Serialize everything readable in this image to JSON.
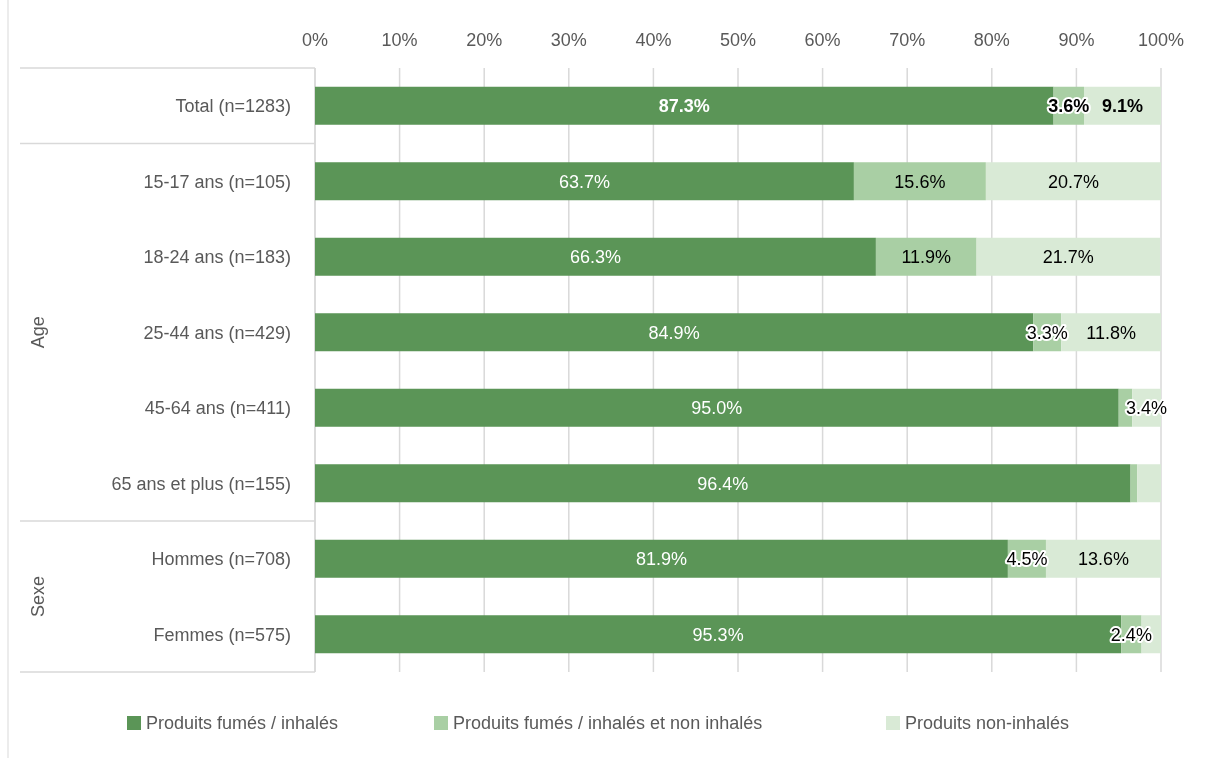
{
  "chart_data": {
    "type": "bar",
    "orientation": "horizontal",
    "stacked": true,
    "categories": [
      "Total (n=1283)",
      "15-17 ans (n=105)",
      "18-24 ans (n=183)",
      "25-44 ans (n=429)",
      "45-64 ans (n=411)",
      "65 ans et plus (n=155)",
      "Hommes (n=708)",
      "Femmes (n=575)"
    ],
    "series": [
      {
        "name": "Produits fumés / inhalés",
        "color": "#5b9557",
        "values": [
          87.3,
          63.7,
          66.3,
          84.9,
          95.0,
          96.4,
          81.9,
          95.3
        ],
        "value_labels": [
          "87.3%",
          "63.7%",
          "66.3%",
          "84.9%",
          "95.0%",
          "96.4%",
          "81.9%",
          "95.3%"
        ]
      },
      {
        "name": "Produits fumés / inhalés et non inhalés",
        "color": "#a9cfa4",
        "values": [
          3.6,
          15.6,
          11.9,
          3.3,
          1.6,
          0.8,
          4.5,
          2.4
        ],
        "value_labels": [
          "3.6%",
          "15.6%",
          "11.9%",
          "3.3%",
          null,
          null,
          "4.5%",
          "2.4%"
        ]
      },
      {
        "name": "Produits non-inhalés",
        "color": "#d9ead6",
        "values": [
          9.1,
          20.7,
          21.7,
          11.8,
          3.4,
          2.8,
          13.6,
          2.3
        ],
        "value_labels": [
          "9.1%",
          "20.7%",
          "21.7%",
          "11.8%",
          "3.4%",
          null,
          "13.6%",
          null
        ]
      }
    ],
    "xlim": [
      0,
      100
    ],
    "xticks": [
      {
        "value": 0,
        "label": "0%"
      },
      {
        "value": 10,
        "label": "10%"
      },
      {
        "value": 20,
        "label": "20%"
      },
      {
        "value": 30,
        "label": "30%"
      },
      {
        "value": 40,
        "label": "40%"
      },
      {
        "value": 50,
        "label": "50%"
      },
      {
        "value": 60,
        "label": "60%"
      },
      {
        "value": 70,
        "label": "70%"
      },
      {
        "value": 80,
        "label": "80%"
      },
      {
        "value": 90,
        "label": "90%"
      },
      {
        "value": 100,
        "label": "100%"
      }
    ],
    "grid": "x",
    "legend": "bottom",
    "annotations": [
      "Age",
      "Sexe"
    ]
  }
}
